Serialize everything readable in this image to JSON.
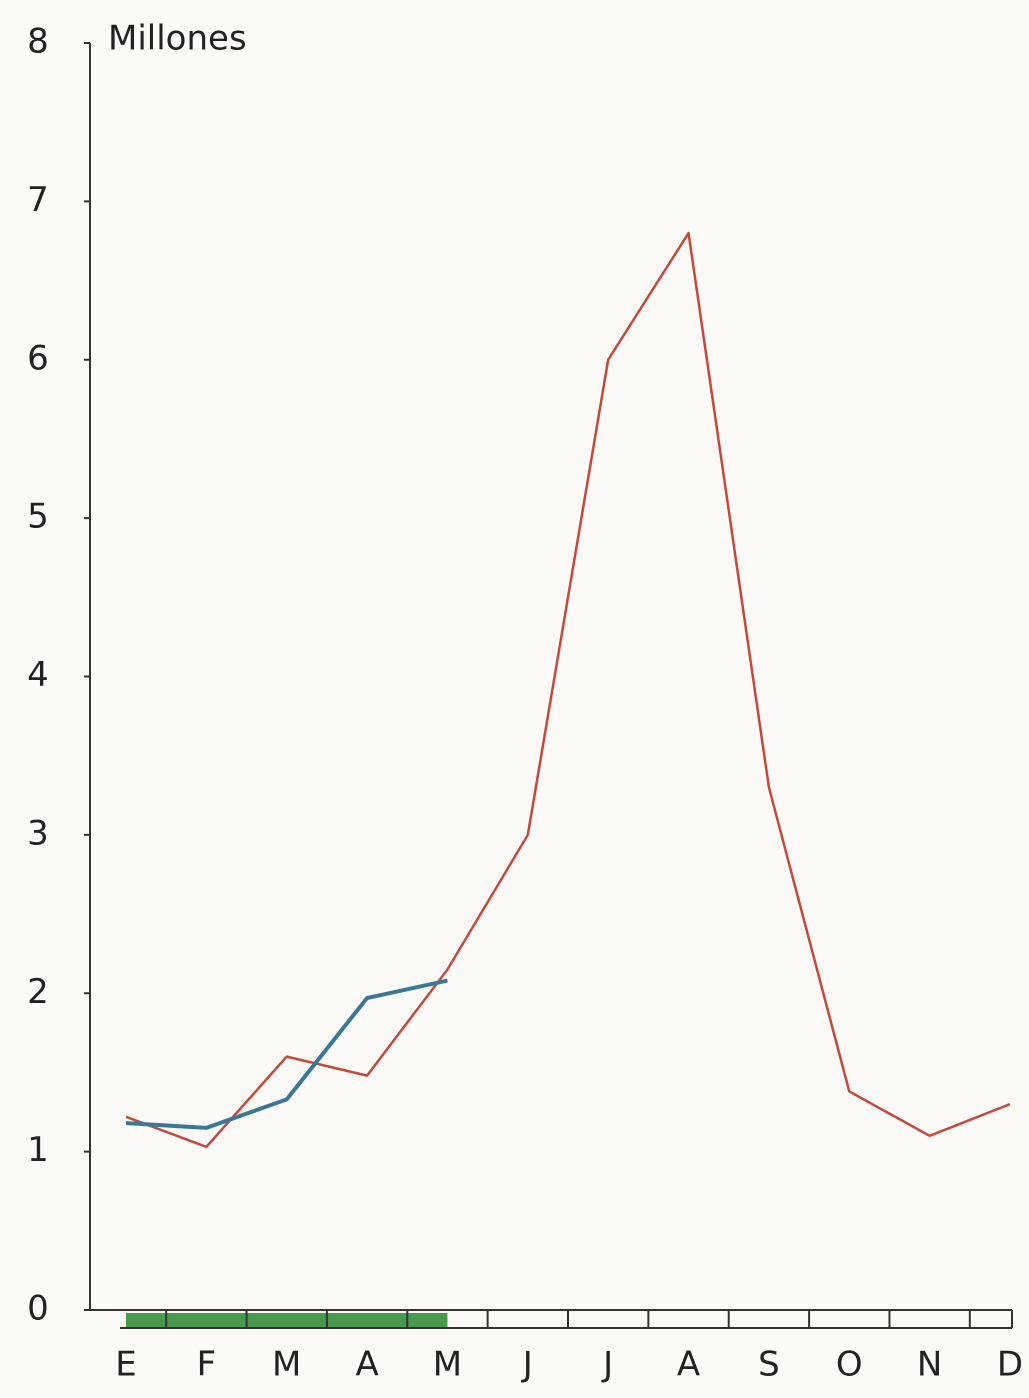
{
  "chart_data": {
    "type": "line",
    "y_label": "Millones",
    "categories": [
      "E",
      "F",
      "M",
      "A",
      "M",
      "J",
      "J",
      "A",
      "S",
      "O",
      "N",
      "D"
    ],
    "series": [
      {
        "color": "#c5483c",
        "values": [
          1.22,
          1.03,
          1.6,
          1.48,
          2.15,
          3.0,
          6.0,
          6.8,
          3.3,
          1.38,
          1.1,
          1.3
        ]
      },
      {
        "color": "#3a7896",
        "values": [
          1.18,
          1.15,
          1.33,
          1.97,
          2.08,
          null,
          null,
          null,
          null,
          null,
          null,
          null
        ]
      }
    ],
    "ylim": [
      0,
      8
    ],
    "yticks": [
      0,
      1,
      2,
      3,
      4,
      5,
      6,
      7,
      8
    ]
  }
}
